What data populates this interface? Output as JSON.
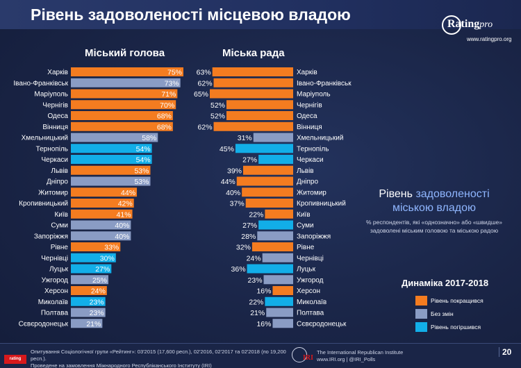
{
  "title": "Рівень задоволеності місцевою владою",
  "logo": {
    "name": "Rating",
    "suffix": "pro",
    "url": "www.ratingpro.org"
  },
  "colors": {
    "improved": "#f47c20",
    "same": "#8a9cc4",
    "worsened": "#12aee8",
    "background": "#1a2547"
  },
  "chart_data": [
    {
      "type": "bar",
      "title": "Міський голова",
      "orientation": "horizontal",
      "categories": [
        "Харків",
        "Івано-Франківськ",
        "Маріуполь",
        "Чернігів",
        "Одеса",
        "Вінниця",
        "Хмельницький",
        "Тернопіль",
        "Черкаси",
        "Львів",
        "Дніпро",
        "Житомир",
        "Кропивницький",
        "Київ",
        "Суми",
        "Запоріжжя",
        "Рівне",
        "Чернівці",
        "Луцьк",
        "Ужгород",
        "Херсон",
        "Миколаїв",
        "Полтава",
        "Сєвєродонецьк"
      ],
      "values": [
        75,
        73,
        71,
        70,
        68,
        68,
        58,
        54,
        54,
        53,
        53,
        44,
        42,
        41,
        40,
        40,
        33,
        30,
        27,
        25,
        24,
        23,
        23,
        21
      ],
      "value_labels": [
        "75%",
        "73%",
        "71%",
        "70%",
        "68%",
        "68%",
        "58%",
        "54%",
        "54%",
        "53%",
        "53%",
        "44%",
        "42%",
        "41%",
        "40%",
        "40%",
        "33%",
        "30%",
        "27%",
        "25%",
        "24%",
        "23%",
        "23%",
        "21%"
      ],
      "dynamics": [
        "improved",
        "same",
        "improved",
        "improved",
        "improved",
        "improved",
        "same",
        "worsened",
        "worsened",
        "improved",
        "same",
        "improved",
        "improved",
        "improved",
        "same",
        "same",
        "improved",
        "worsened",
        "worsened",
        "same",
        "improved",
        "worsened",
        "same",
        "same"
      ],
      "xlim": [
        0,
        75
      ]
    },
    {
      "type": "bar",
      "title": "Міська рада",
      "orientation": "horizontal",
      "categories": [
        "Харків",
        "Івано-Франківськ",
        "Маріуполь",
        "Чернігів",
        "Одеса",
        "Вінниця",
        "Хмельницький",
        "Тернопіль",
        "Черкаси",
        "Львів",
        "Дніпро",
        "Житомир",
        "Кропивницький",
        "Київ",
        "Суми",
        "Запоріжжя",
        "Рівне",
        "Чернівці",
        "Луцьк",
        "Ужгород",
        "Херсон",
        "Миколаїв",
        "Полтава",
        "Сєвєродонецьк"
      ],
      "values": [
        63,
        62,
        65,
        52,
        52,
        62,
        31,
        45,
        27,
        39,
        44,
        40,
        37,
        22,
        27,
        28,
        32,
        24,
        36,
        23,
        16,
        22,
        21,
        16
      ],
      "value_labels": [
        "63%",
        "62%",
        "65%",
        "52%",
        "52%",
        "62%",
        "31%",
        "45%",
        "27%",
        "39%",
        "44%",
        "40%",
        "37%",
        "22%",
        "27%",
        "28%",
        "32%",
        "24%",
        "36%",
        "23%",
        "16%",
        "22%",
        "21%",
        "16%"
      ],
      "dynamics": [
        "improved",
        "improved",
        "improved",
        "improved",
        "improved",
        "improved",
        "same",
        "worsened",
        "worsened",
        "improved",
        "improved",
        "improved",
        "improved",
        "improved",
        "worsened",
        "same",
        "improved",
        "same",
        "worsened",
        "same",
        "improved",
        "worsened",
        "same",
        "same"
      ],
      "xlim": [
        0,
        65
      ]
    }
  ],
  "side": {
    "title_part1": "Рівень",
    "title_part2": "задоволеності",
    "title_line2": "міською владою",
    "subtitle": "% респондентів, які «однозначно» або «швидше» задоволені міським головою та міською радою"
  },
  "legend": {
    "title": "Динаміка 2017-2018",
    "items": [
      {
        "key": "improved",
        "label": "Рівень покращився"
      },
      {
        "key": "same",
        "label": "Без змін"
      },
      {
        "key": "worsened",
        "label": "Рівень погіршився"
      }
    ]
  },
  "footer": {
    "badge": "rating",
    "note_line1": "Опитування Соціологічної групи «Рейтинг»: 03'2015 (17,600 респ.), 02'2016, 02'2017 та 02'2018 (по 19,200 респ.).",
    "note_line2": "Проведене на замовлення Міжнародного Республіканського Інституту (IRI)",
    "iri_abbr": "IRI",
    "iri_line1": "The International Republican Institute",
    "iri_line2": "www.IRI.org | @IRI_Polls",
    "page": "20"
  }
}
